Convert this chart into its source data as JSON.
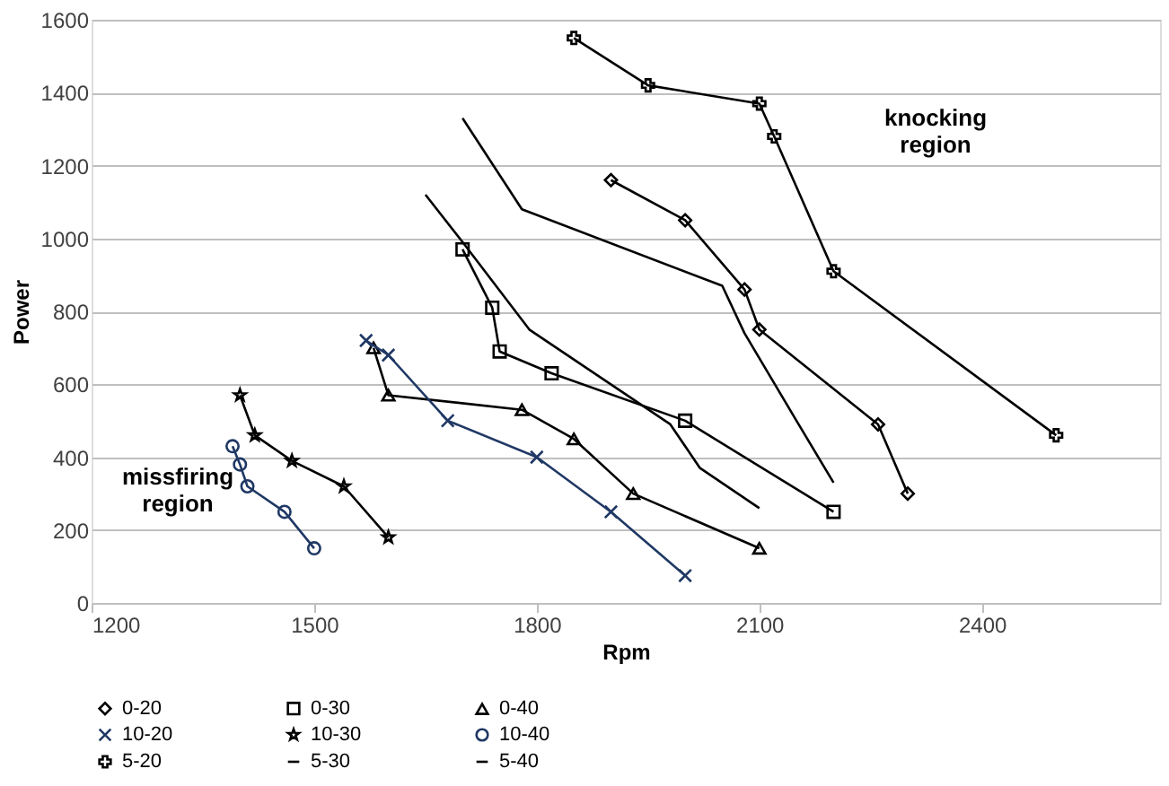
{
  "chart_data": {
    "type": "line",
    "xlabel": "Rpm",
    "ylabel": "Power",
    "xlim": [
      1200,
      2640
    ],
    "xticks": [
      1200,
      1500,
      1800,
      2100,
      2400
    ],
    "ylim": [
      0,
      1600
    ],
    "yticks": [
      0,
      200,
      400,
      600,
      800,
      1000,
      1200,
      1400,
      1600
    ],
    "grid": "y",
    "legend": "bottom",
    "annotations": [
      "missfiring region",
      "knocking region"
    ],
    "series": [
      {
        "name": "0-20",
        "color": "#000000",
        "marker": "diamond",
        "x": [
          1900,
          2000,
          2080,
          2100,
          2260,
          2300
        ],
        "values": [
          1160,
          1050,
          860,
          750,
          490,
          300
        ]
      },
      {
        "name": "0-30",
        "color": "#000000",
        "marker": "square",
        "x": [
          1700,
          1740,
          1750,
          1820,
          2000,
          2200
        ],
        "values": [
          970,
          810,
          690,
          630,
          500,
          250
        ]
      },
      {
        "name": "0-40",
        "color": "#000000",
        "marker": "triangle",
        "x": [
          1580,
          1600,
          1780,
          1850,
          1930,
          2100
        ],
        "values": [
          700,
          570,
          530,
          450,
          300,
          150
        ]
      },
      {
        "name": "10-20",
        "color": "#1f3864",
        "marker": "cross",
        "x": [
          1570,
          1600,
          1680,
          1800,
          1900,
          2000
        ],
        "values": [
          720,
          680,
          500,
          400,
          250,
          75
        ]
      },
      {
        "name": "10-30",
        "color": "#000000",
        "marker": "star",
        "x": [
          1400,
          1420,
          1470,
          1540,
          1600
        ],
        "values": [
          570,
          460,
          390,
          320,
          180
        ]
      },
      {
        "name": "10-40",
        "color": "#1f3864",
        "marker": "circle",
        "x": [
          1390,
          1400,
          1410,
          1460,
          1500
        ],
        "values": [
          430,
          380,
          320,
          250,
          150
        ]
      },
      {
        "name": "5-20",
        "color": "#000000",
        "marker": "cross",
        "x": [
          1850,
          1950,
          2100,
          2120,
          2200,
          2500
        ],
        "values": [
          1550,
          1420,
          1370,
          1280,
          910,
          460
        ]
      },
      {
        "name": "5-30",
        "color": "#000000",
        "marker": "none",
        "x": [
          1700,
          1780,
          2050,
          2080,
          2150,
          2200
        ],
        "values": [
          1330,
          1080,
          870,
          740,
          500,
          330
        ]
      },
      {
        "name": "5-40",
        "color": "#000000",
        "marker": "none",
        "x": [
          1650,
          1700,
          1790,
          1980,
          2020,
          2100
        ],
        "values": [
          1120,
          990,
          750,
          490,
          370,
          260
        ]
      }
    ]
  }
}
